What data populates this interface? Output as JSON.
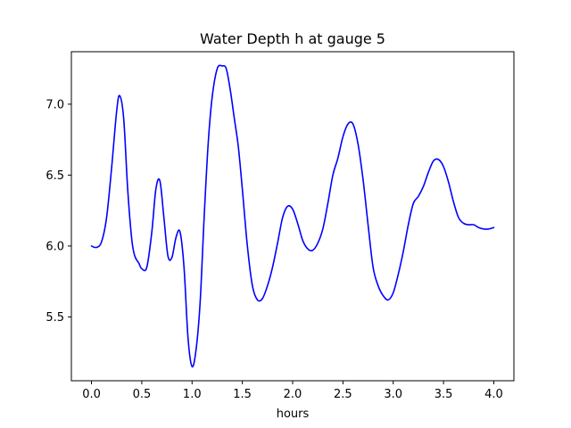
{
  "chart_data": {
    "type": "line",
    "title": "Water Depth h at gauge 5",
    "xlabel": "hours",
    "ylabel": "",
    "xlim": [
      -0.2,
      4.2
    ],
    "ylim": [
      5.05,
      7.37
    ],
    "xticks": [
      0.0,
      0.5,
      1.0,
      1.5,
      2.0,
      2.5,
      3.0,
      3.5,
      4.0
    ],
    "xtick_labels": [
      "0.0",
      "0.5",
      "1.0",
      "1.5",
      "2.0",
      "2.5",
      "3.0",
      "3.5",
      "4.0"
    ],
    "yticks": [
      5.5,
      6.0,
      6.5,
      7.0
    ],
    "ytick_labels": [
      "5.5",
      "6.0",
      "6.5",
      "7.0"
    ],
    "grid": false,
    "color": "#0000ff",
    "series": [
      {
        "x": [
          0.0,
          0.05,
          0.1,
          0.15,
          0.2,
          0.25,
          0.28,
          0.32,
          0.36,
          0.4,
          0.43,
          0.47,
          0.5,
          0.55,
          0.6,
          0.64,
          0.68,
          0.72,
          0.76,
          0.8,
          0.84,
          0.88,
          0.92,
          0.96,
          1.0,
          1.04,
          1.08,
          1.12,
          1.16,
          1.2,
          1.25,
          1.3,
          1.34,
          1.38,
          1.42,
          1.46,
          1.5,
          1.55,
          1.6,
          1.65,
          1.7,
          1.75,
          1.8,
          1.85,
          1.9,
          1.95,
          2.0,
          2.05,
          2.1,
          2.15,
          2.2,
          2.25,
          2.3,
          2.35,
          2.4,
          2.45,
          2.5,
          2.55,
          2.6,
          2.65,
          2.7,
          2.75,
          2.8,
          2.85,
          2.9,
          2.95,
          3.0,
          3.05,
          3.1,
          3.15,
          3.2,
          3.25,
          3.3,
          3.35,
          3.4,
          3.45,
          3.5,
          3.55,
          3.6,
          3.65,
          3.7,
          3.75,
          3.8,
          3.85,
          3.9,
          3.95,
          4.0
        ],
        "y": [
          6.0,
          5.99,
          6.03,
          6.2,
          6.55,
          6.95,
          7.06,
          6.9,
          6.4,
          6.05,
          5.93,
          5.88,
          5.84,
          5.85,
          6.1,
          6.4,
          6.46,
          6.2,
          5.93,
          5.92,
          6.06,
          6.1,
          5.85,
          5.35,
          5.15,
          5.27,
          5.6,
          6.2,
          6.72,
          7.05,
          7.25,
          7.27,
          7.25,
          7.1,
          6.9,
          6.7,
          6.4,
          6.0,
          5.72,
          5.62,
          5.63,
          5.72,
          5.85,
          6.02,
          6.2,
          6.28,
          6.26,
          6.16,
          6.04,
          5.98,
          5.97,
          6.02,
          6.12,
          6.3,
          6.5,
          6.62,
          6.77,
          6.86,
          6.86,
          6.72,
          6.47,
          6.15,
          5.85,
          5.72,
          5.65,
          5.62,
          5.67,
          5.8,
          5.96,
          6.15,
          6.3,
          6.35,
          6.42,
          6.52,
          6.6,
          6.61,
          6.56,
          6.45,
          6.31,
          6.2,
          6.16,
          6.15,
          6.15,
          6.13,
          6.12,
          6.12,
          6.13
        ]
      }
    ]
  }
}
